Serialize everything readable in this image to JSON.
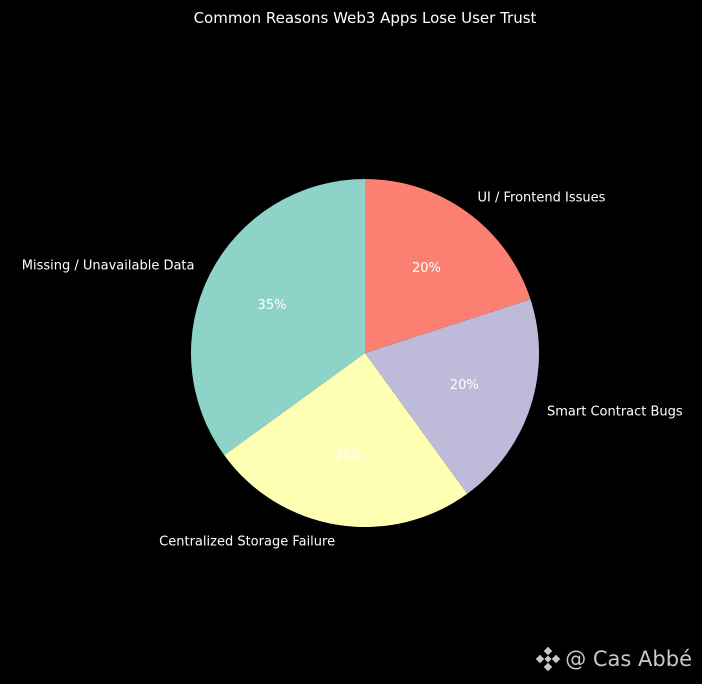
{
  "chart_data": {
    "type": "pie",
    "title": "Common Reasons Web3 Apps Lose User Trust",
    "start_angle_deg": 90,
    "direction": "counterclockwise",
    "slices": [
      {
        "label": "Missing / Unavailable Data",
        "value": 35,
        "pct_label": "35%",
        "color": "#8dd3c7"
      },
      {
        "label": "Centralized Storage Failure",
        "value": 25,
        "pct_label": "25%",
        "color": "#ffffb3"
      },
      {
        "label": "Smart Contract Bugs",
        "value": 20,
        "pct_label": "20%",
        "color": "#bebada"
      },
      {
        "label": "UI / Frontend Issues",
        "value": 20,
        "pct_label": "20%",
        "color": "#fb8072"
      }
    ]
  },
  "watermark": {
    "text": "@ Cas Abbé",
    "icon": "binance-diamond-icon"
  },
  "colors": {
    "background": "#000000",
    "text": "#ffffff",
    "watermark": "#c8c8c8"
  }
}
